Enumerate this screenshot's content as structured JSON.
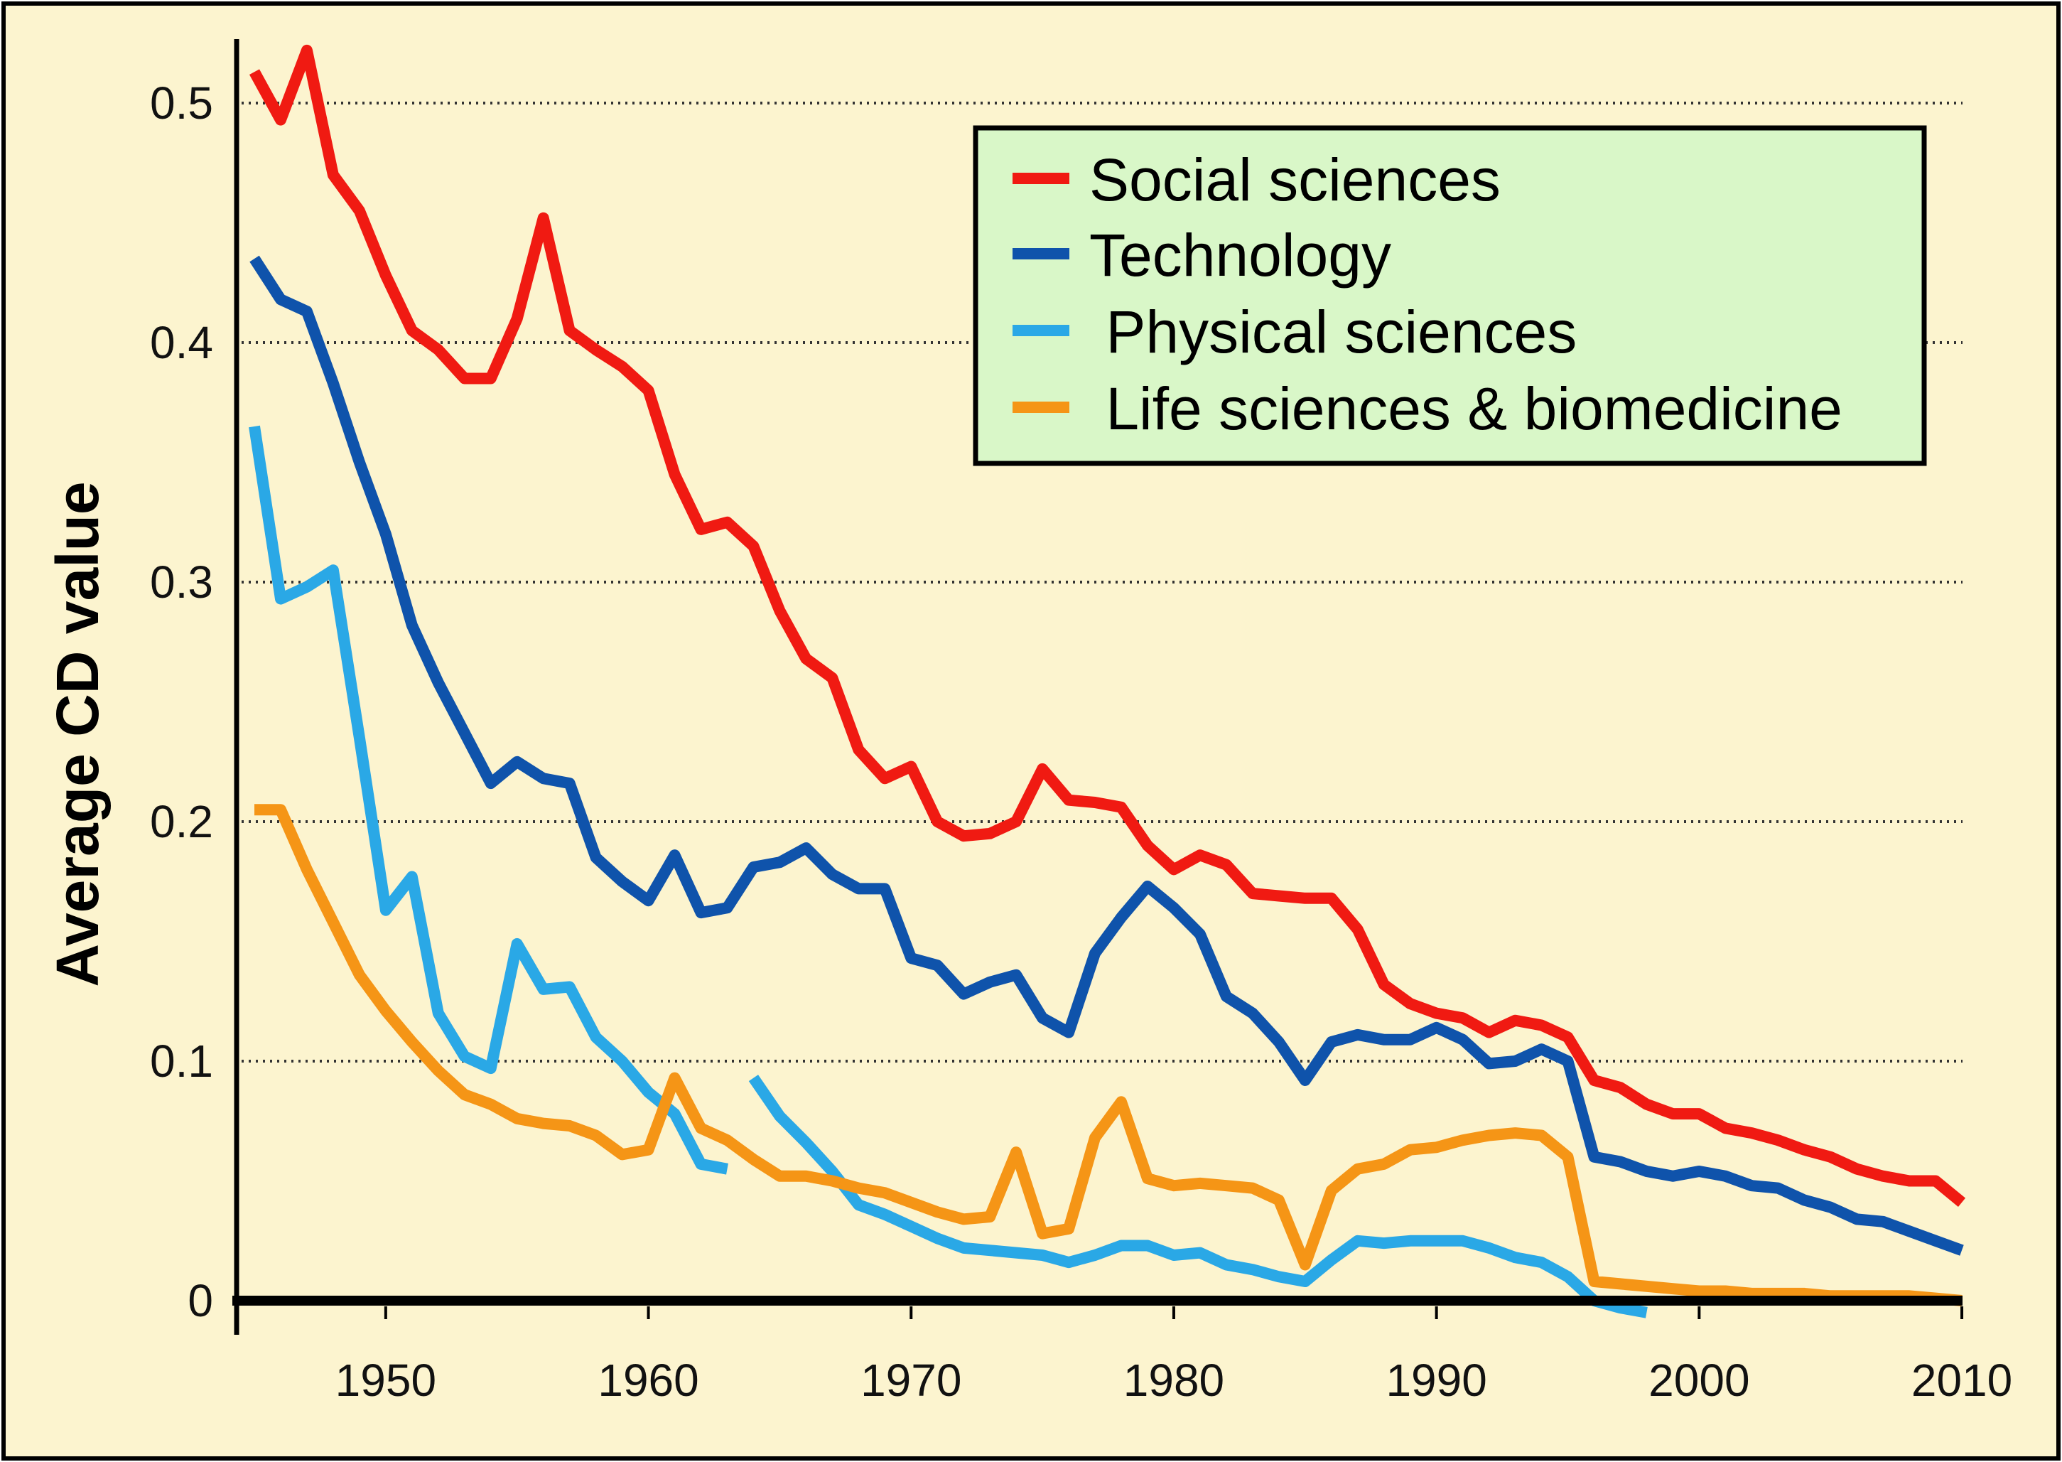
{
  "colors": {
    "background": "#fcf4cf",
    "legend_background": "#d9f7c8",
    "social": "#f01a12",
    "technology": "#0f53ab",
    "physical": "#2aa8e6",
    "life": "#f59516",
    "axis": "#000000",
    "grid": "#333333"
  },
  "chart_data": {
    "type": "line",
    "title": "",
    "xlabel": "",
    "ylabel": "Average CD value",
    "xlim": [
      1944.5,
      2011.5
    ],
    "ylim": [
      -0.015,
      0.525
    ],
    "x_ticks": [
      1950,
      1960,
      1970,
      1980,
      1990,
      2000,
      2010
    ],
    "x_tick_labels": [
      "1950",
      "1960",
      "1970",
      "1980",
      "1990",
      "2000",
      "2010"
    ],
    "y_ticks": [
      0,
      0.1,
      0.2,
      0.3,
      0.4,
      0.5
    ],
    "y_tick_labels": [
      "0",
      "0.1",
      "0.2",
      "0.3",
      "0.4",
      "0.5"
    ],
    "grid": "horizontal dotted",
    "legend_position": "top-right",
    "series": [
      {
        "name": "Social sciences",
        "color_key": "social",
        "x": [
          1945,
          1946,
          1947,
          1948,
          1949,
          1950,
          1951,
          1952,
          1953,
          1954,
          1955,
          1956,
          1957,
          1958,
          1959,
          1960,
          1961,
          1962,
          1963,
          1964,
          1965,
          1966,
          1967,
          1968,
          1969,
          1970,
          1971,
          1972,
          1973,
          1974,
          1975,
          1976,
          1977,
          1978,
          1979,
          1980,
          1981,
          1982,
          1983,
          1984,
          1985,
          1986,
          1987,
          1988,
          1989,
          1990,
          1991,
          1992,
          1993,
          1994,
          1995,
          1996,
          1997,
          1998,
          1999,
          2000,
          2001,
          2002,
          2003,
          2004,
          2005,
          2006,
          2007,
          2008,
          2009,
          2010
        ],
        "y": [
          0.513,
          0.493,
          0.522,
          0.47,
          0.455,
          0.428,
          0.405,
          0.397,
          0.385,
          0.385,
          0.41,
          0.452,
          0.405,
          0.397,
          0.39,
          0.38,
          0.345,
          0.322,
          0.325,
          0.315,
          0.288,
          0.268,
          0.26,
          0.23,
          0.218,
          0.223,
          0.2,
          0.194,
          0.195,
          0.2,
          0.222,
          0.209,
          0.208,
          0.206,
          0.19,
          0.18,
          0.186,
          0.182,
          0.17,
          0.169,
          0.168,
          0.168,
          0.155,
          0.132,
          0.124,
          0.12,
          0.118,
          0.112,
          0.117,
          0.115,
          0.11,
          0.092,
          0.089,
          0.082,
          0.078,
          0.078,
          0.072,
          0.07,
          0.067,
          0.063,
          0.06,
          0.055,
          0.052,
          0.05,
          0.05,
          0.041
        ]
      },
      {
        "name": "Technology",
        "color_key": "technology",
        "x": [
          1945,
          1946,
          1947,
          1948,
          1949,
          1950,
          1951,
          1952,
          1953,
          1954,
          1955,
          1956,
          1957,
          1958,
          1959,
          1960,
          1961,
          1962,
          1963,
          1964,
          1965,
          1966,
          1967,
          1968,
          1969,
          1970,
          1971,
          1972,
          1973,
          1974,
          1975,
          1976,
          1977,
          1978,
          1979,
          1980,
          1981,
          1982,
          1983,
          1984,
          1985,
          1986,
          1987,
          1988,
          1989,
          1990,
          1991,
          1992,
          1993,
          1994,
          1995,
          1996,
          1997,
          1998,
          1999,
          2000,
          2001,
          2002,
          2003,
          2004,
          2005,
          2006,
          2007,
          2008,
          2009,
          2010
        ],
        "y": [
          0.435,
          0.418,
          0.413,
          0.383,
          0.35,
          0.32,
          0.282,
          0.258,
          0.237,
          0.216,
          0.225,
          0.218,
          0.216,
          0.185,
          0.175,
          0.167,
          0.186,
          0.162,
          0.164,
          0.181,
          0.183,
          0.189,
          0.178,
          0.172,
          0.172,
          0.143,
          0.14,
          0.128,
          0.133,
          0.136,
          0.118,
          0.112,
          0.145,
          0.16,
          0.173,
          0.164,
          0.153,
          0.127,
          0.12,
          0.108,
          0.092,
          0.108,
          0.111,
          0.109,
          0.109,
          0.114,
          0.109,
          0.099,
          0.1,
          0.105,
          0.1,
          0.06,
          0.058,
          0.054,
          0.052,
          0.054,
          0.052,
          0.048,
          0.047,
          0.042,
          0.039,
          0.034,
          0.033,
          0.029,
          0.025,
          0.021
        ]
      },
      {
        "name": "Physical sciences",
        "color_key": "physical",
        "x": [
          1945,
          1946,
          1947,
          1948,
          1949,
          1950,
          1951,
          1952,
          1953,
          1954,
          1955,
          1956,
          1957,
          1958,
          1959,
          1960,
          1961,
          1962,
          1963,
          null,
          1964,
          1965,
          1966,
          1967,
          1968,
          1969,
          1970,
          1971,
          1972,
          1973,
          1974,
          1975,
          1976,
          1977,
          1978,
          1979,
          1980,
          1981,
          1982,
          1983,
          1984,
          1985,
          1986,
          1987,
          1988,
          1989,
          1990,
          1991,
          1992,
          1993,
          1994,
          1995,
          1996,
          1997,
          1998
        ],
        "y": [
          0.365,
          0.293,
          0.298,
          0.305,
          0.235,
          0.163,
          0.177,
          0.12,
          0.102,
          0.097,
          0.149,
          0.13,
          0.131,
          0.11,
          0.1,
          0.087,
          0.078,
          0.057,
          0.055,
          null,
          0.093,
          0.077,
          0.066,
          0.054,
          0.04,
          0.036,
          0.031,
          0.026,
          0.022,
          0.021,
          0.02,
          0.019,
          0.016,
          0.019,
          0.023,
          0.023,
          0.019,
          0.02,
          0.015,
          0.013,
          0.01,
          0.008,
          0.017,
          0.025,
          0.024,
          0.025,
          0.025,
          0.025,
          0.022,
          0.018,
          0.016,
          0.01,
          0.0,
          -0.003,
          -0.005
        ]
      },
      {
        "name": "Life sciences & biomedicine",
        "color_key": "life",
        "x": [
          1945,
          1946,
          1947,
          1948,
          1949,
          1950,
          1951,
          1952,
          1953,
          1954,
          1955,
          1956,
          1957,
          1958,
          1959,
          1960,
          1961,
          1962,
          1963,
          1964,
          1965,
          1966,
          1967,
          1968,
          1969,
          1970,
          1971,
          1972,
          1973,
          1974,
          1975,
          1976,
          1977,
          1978,
          1979,
          1980,
          1981,
          1982,
          1983,
          1984,
          1985,
          1986,
          1987,
          1988,
          1989,
          1990,
          1991,
          1992,
          1993,
          1994,
          1995,
          1996,
          1997,
          1998,
          1999,
          2000,
          2001,
          2002,
          2003,
          2004,
          2005,
          2006,
          2007,
          2008,
          2009,
          2010
        ],
        "y": [
          0.205,
          0.205,
          0.18,
          0.158,
          0.136,
          0.121,
          0.108,
          0.096,
          0.086,
          0.082,
          0.076,
          0.074,
          0.073,
          0.069,
          0.061,
          0.063,
          0.093,
          0.072,
          0.067,
          0.059,
          0.052,
          0.052,
          0.05,
          0.047,
          0.045,
          0.041,
          0.037,
          0.034,
          0.035,
          0.062,
          0.028,
          0.03,
          0.068,
          0.083,
          0.051,
          0.048,
          0.049,
          0.048,
          0.047,
          0.042,
          0.015,
          0.046,
          0.055,
          0.057,
          0.063,
          0.064,
          0.067,
          0.069,
          0.07,
          0.069,
          0.06,
          0.008,
          0.007,
          0.006,
          0.005,
          0.004,
          0.004,
          0.003,
          0.003,
          0.003,
          0.002,
          0.002,
          0.002,
          0.002,
          0.001,
          0.0
        ]
      }
    ],
    "legend": {
      "entries": [
        "Social sciences",
        "Technology",
        " Physical sciences",
        " Life sciences & biomedicine"
      ]
    }
  }
}
